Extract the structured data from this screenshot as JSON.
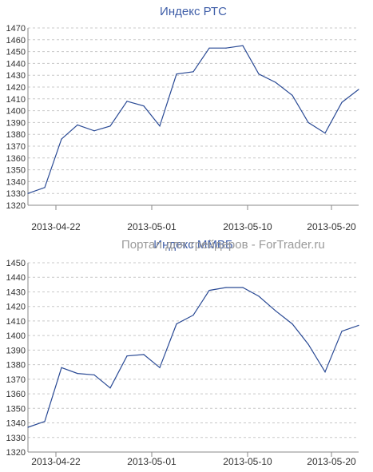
{
  "watermark": "Портал для трейдеров - ForTrader.ru",
  "chart_data": [
    {
      "type": "line",
      "title": "Индекс РТС",
      "xlabel": "",
      "ylabel": "",
      "ylim": [
        1320,
        1470
      ],
      "ytick_step": 10,
      "x_tick_labels": [
        "2013-04-22",
        "2013-05-01",
        "2013-05-10",
        "2013-05-20"
      ],
      "x": [
        "2013-04-19",
        "2013-04-22",
        "2013-04-23",
        "2013-04-24",
        "2013-04-25",
        "2013-04-26",
        "2013-04-29",
        "2013-04-30",
        "2013-05-02",
        "2013-05-03",
        "2013-05-06",
        "2013-05-07",
        "2013-05-08",
        "2013-05-13",
        "2013-05-14",
        "2013-05-15",
        "2013-05-16",
        "2013-05-17",
        "2013-05-20",
        "2013-05-21",
        "2013-05-22"
      ],
      "series": [
        {
          "name": "",
          "color": "#2a4a95",
          "values": [
            1330,
            1335,
            1376,
            1388,
            1383,
            1387,
            1408,
            1404,
            1387,
            1431,
            1433,
            1453,
            1453,
            1455,
            1431,
            1424,
            1413,
            1390,
            1381,
            1407,
            1418
          ]
        }
      ],
      "grid": true
    },
    {
      "type": "line",
      "title": "Индекс ММВБ",
      "xlabel": "",
      "ylabel": "",
      "ylim": [
        1320,
        1450
      ],
      "ytick_step": 10,
      "x_tick_labels": [
        "2013-04-22",
        "2013-05-01",
        "2013-05-10",
        "2013-05-20"
      ],
      "x": [
        "2013-04-19",
        "2013-04-22",
        "2013-04-23",
        "2013-04-24",
        "2013-04-25",
        "2013-04-26",
        "2013-04-29",
        "2013-04-30",
        "2013-05-02",
        "2013-05-03",
        "2013-05-06",
        "2013-05-07",
        "2013-05-08",
        "2013-05-13",
        "2013-05-14",
        "2013-05-15",
        "2013-05-16",
        "2013-05-17",
        "2013-05-20",
        "2013-05-21",
        "2013-05-22"
      ],
      "series": [
        {
          "name": "",
          "color": "#2a4a95",
          "values": [
            1337,
            1341,
            1378,
            1374,
            1373,
            1364,
            1386,
            1387,
            1378,
            1408,
            1414,
            1431,
            1433,
            1433,
            1427,
            1417,
            1408,
            1394,
            1375,
            1403,
            1407
          ]
        }
      ],
      "grid": true
    }
  ]
}
